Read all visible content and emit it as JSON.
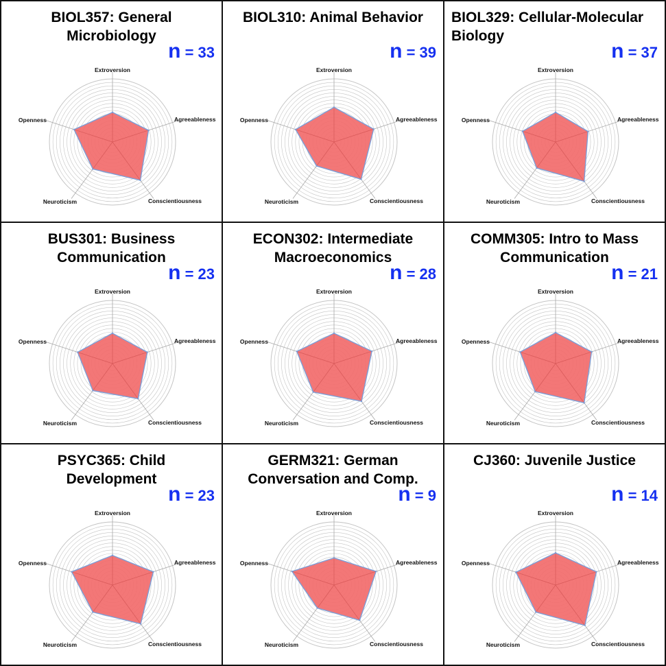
{
  "axes": [
    "Extroversion",
    "Agreeableness",
    "Conscientiousness",
    "Neuroticism",
    "Openness"
  ],
  "colors": {
    "fill": "#f26b6b",
    "edge": "#7d9dd6",
    "grid": "#c4c4c4",
    "spoke": "#a8a8a8",
    "n": "#1530f0"
  },
  "chart_data": [
    {
      "type": "radar",
      "title": "BIOL357: General\nMicrobiology",
      "n_label": "= 33",
      "n_letter": "n",
      "categories": [
        "Extroversion",
        "Agreeableness",
        "Conscientiousness",
        "Neuroticism",
        "Openness"
      ],
      "values": [
        0.47,
        0.6,
        0.75,
        0.53,
        0.64
      ],
      "rmax": 1
    },
    {
      "type": "radar",
      "title": "BIOL310: Animal Behavior",
      "n_label": "= 39",
      "n_letter": "n",
      "categories": [
        "Extroversion",
        "Agreeableness",
        "Conscientiousness",
        "Neuroticism",
        "Openness"
      ],
      "values": [
        0.55,
        0.66,
        0.73,
        0.47,
        0.64
      ],
      "rmax": 1
    },
    {
      "type": "radar",
      "title": "BIOL329: Cellular-Molecular\nBiology",
      "n_label": "= 37",
      "n_letter": "n",
      "categories": [
        "Extroversion",
        "Agreeableness",
        "Conscientiousness",
        "Neuroticism",
        "Openness"
      ],
      "values": [
        0.47,
        0.54,
        0.77,
        0.51,
        0.55
      ],
      "rmax": 1
    },
    {
      "type": "radar",
      "title": "BUS301: Business\nCommunication",
      "n_label": "= 23",
      "n_letter": "n",
      "categories": [
        "Extroversion",
        "Agreeableness",
        "Conscientiousness",
        "Neuroticism",
        "Openness"
      ],
      "values": [
        0.48,
        0.58,
        0.69,
        0.53,
        0.58
      ],
      "rmax": 1
    },
    {
      "type": "radar",
      "title": "ECON302: Intermediate\nMacroeconomics",
      "n_label": "= 28",
      "n_letter": "n",
      "categories": [
        "Extroversion",
        "Agreeableness",
        "Conscientiousness",
        "Neuroticism",
        "Openness"
      ],
      "values": [
        0.48,
        0.63,
        0.74,
        0.56,
        0.62
      ],
      "rmax": 1
    },
    {
      "type": "radar",
      "title": "COMM305: Intro to Mass\nCommunication",
      "n_label": "= 21",
      "n_letter": "n",
      "categories": [
        "Extroversion",
        "Agreeableness",
        "Conscientiousness",
        "Neuroticism",
        "Openness"
      ],
      "values": [
        0.49,
        0.6,
        0.77,
        0.55,
        0.59
      ],
      "rmax": 1
    },
    {
      "type": "radar",
      "title": "PSYC365: Child\nDevelopment",
      "n_label": "= 23",
      "n_letter": "n",
      "categories": [
        "Extroversion",
        "Agreeableness",
        "Conscientiousness",
        "Neuroticism",
        "Openness"
      ],
      "values": [
        0.47,
        0.68,
        0.76,
        0.53,
        0.68
      ],
      "rmax": 1
    },
    {
      "type": "radar",
      "title": "GERM321: German\nConversation and Comp.",
      "n_label": "= 9",
      "n_letter": "n",
      "categories": [
        "Extroversion",
        "Agreeableness",
        "Conscientiousness",
        "Neuroticism",
        "Openness"
      ],
      "values": [
        0.43,
        0.7,
        0.69,
        0.45,
        0.7
      ],
      "rmax": 1
    },
    {
      "type": "radar",
      "title": "CJ360: Juvenile Justice",
      "n_label": "= 14",
      "n_letter": "n",
      "categories": [
        "Extroversion",
        "Agreeableness",
        "Conscientiousness",
        "Neuroticism",
        "Openness"
      ],
      "values": [
        0.51,
        0.68,
        0.79,
        0.53,
        0.66
      ],
      "rmax": 1
    }
  ]
}
